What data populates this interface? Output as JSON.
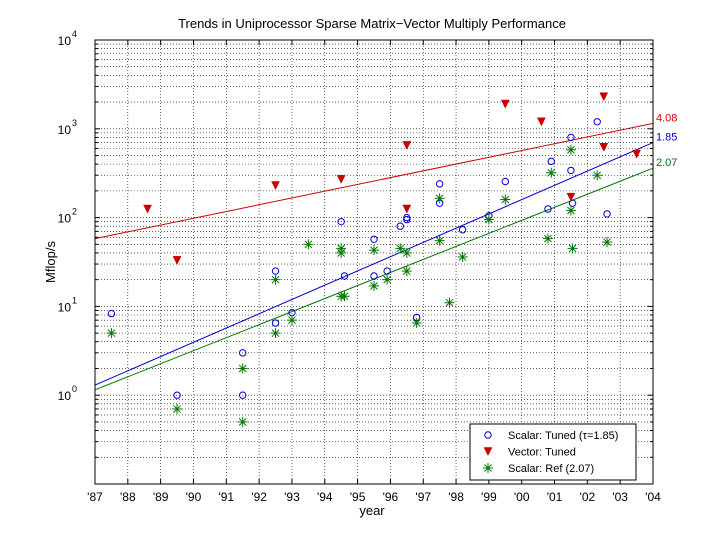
{
  "chart_data": {
    "type": "scatter",
    "title": "Trends in Uniprocessor Sparse Matrix−Vector Multiply Performance",
    "xlabel": "year",
    "ylabel": "Mflop/s",
    "y_scale": "log",
    "xlim": [
      1987,
      2004
    ],
    "ylim": [
      0.1,
      10000
    ],
    "grid": true,
    "legend_position": "bottom-right",
    "x_tick_labels": [
      "'87",
      "'88",
      "'89",
      "'90",
      "'91",
      "'92",
      "'93",
      "'94",
      "'95",
      "'96",
      "'97",
      "'98",
      "'99",
      "'00",
      "'01",
      "'02",
      "'03",
      "'04"
    ],
    "y_tick_labels": [
      {
        "value": 1,
        "base": "10",
        "exp": "0"
      },
      {
        "value": 10,
        "base": "10",
        "exp": "1"
      },
      {
        "value": 100,
        "base": "10",
        "exp": "2"
      },
      {
        "value": 1000,
        "base": "10",
        "exp": "3"
      },
      {
        "value": 10000,
        "base": "10",
        "exp": "4"
      }
    ],
    "series": [
      {
        "name": "Scalar: Tuned (τ=1.85)",
        "marker": "circle",
        "color": "#0000cc",
        "points": [
          [
            1987.5,
            8.3
          ],
          [
            1989.5,
            1.0
          ],
          [
            1991.5,
            3.0
          ],
          [
            1991.5,
            1.0
          ],
          [
            1992.5,
            25
          ],
          [
            1992.5,
            6.5
          ],
          [
            1993.0,
            8.5
          ],
          [
            1994.5,
            90
          ],
          [
            1994.6,
            22
          ],
          [
            1995.5,
            57
          ],
          [
            1995.5,
            22
          ],
          [
            1995.9,
            25
          ],
          [
            1996.3,
            80
          ],
          [
            1996.5,
            95
          ],
          [
            1996.5,
            100
          ],
          [
            1996.8,
            7.5
          ],
          [
            1997.5,
            240
          ],
          [
            1997.5,
            145
          ],
          [
            1998.2,
            73
          ],
          [
            1999.0,
            105
          ],
          [
            1999.5,
            255
          ],
          [
            2000.8,
            125
          ],
          [
            2000.9,
            430
          ],
          [
            2001.5,
            340
          ],
          [
            2001.5,
            800
          ],
          [
            2001.55,
            145
          ],
          [
            2002.3,
            1200
          ],
          [
            2002.6,
            110
          ]
        ]
      },
      {
        "name": "Vector: Tuned",
        "marker": "triangle-down",
        "color": "#cc0000",
        "points": [
          [
            1988.6,
            125
          ],
          [
            1989.5,
            33
          ],
          [
            1992.5,
            230
          ],
          [
            1994.5,
            270
          ],
          [
            1996.5,
            650
          ],
          [
            1996.5,
            125
          ],
          [
            1999.5,
            1900
          ],
          [
            2000.6,
            1200
          ],
          [
            2001.5,
            170
          ],
          [
            2002.5,
            2300
          ],
          [
            2002.5,
            620
          ],
          [
            2003.5,
            520
          ]
        ]
      },
      {
        "name": "Scalar: Ref (2.07)",
        "marker": "asterisk",
        "color": "#007700",
        "points": [
          [
            1987.5,
            5
          ],
          [
            1989.5,
            0.7
          ],
          [
            1991.5,
            2
          ],
          [
            1991.5,
            0.5
          ],
          [
            1992.5,
            20
          ],
          [
            1992.5,
            5
          ],
          [
            1993.0,
            7
          ],
          [
            1993.5,
            50
          ],
          [
            1994.5,
            45
          ],
          [
            1994.5,
            40
          ],
          [
            1994.5,
            13
          ],
          [
            1994.6,
            13
          ],
          [
            1995.5,
            43
          ],
          [
            1995.5,
            17
          ],
          [
            1995.9,
            20
          ],
          [
            1996.3,
            45
          ],
          [
            1996.5,
            40
          ],
          [
            1996.5,
            25
          ],
          [
            1996.8,
            6.5
          ],
          [
            1997.5,
            165
          ],
          [
            1997.5,
            55
          ],
          [
            1997.8,
            11
          ],
          [
            1998.2,
            36
          ],
          [
            1999.0,
            95
          ],
          [
            1999.5,
            160
          ],
          [
            2000.8,
            58
          ],
          [
            2000.9,
            320
          ],
          [
            2001.5,
            580
          ],
          [
            2001.5,
            120
          ],
          [
            2001.55,
            45
          ],
          [
            2002.3,
            300
          ],
          [
            2002.6,
            53
          ]
        ]
      }
    ],
    "trend_lines": [
      {
        "series": "Vector: Tuned",
        "label": "4.08",
        "color": "#cc0000",
        "from": [
          1987,
          58
        ],
        "to": [
          2004,
          1150
        ]
      },
      {
        "series": "Scalar: Tuned (τ=1.85)",
        "label": "1.85",
        "color": "#0000cc",
        "from": [
          1987,
          1.3
        ],
        "to": [
          2004,
          700
        ]
      },
      {
        "series": "Scalar: Ref (2.07)",
        "label": "2.07",
        "color": "#007700",
        "from": [
          1987,
          1.15
        ],
        "to": [
          2004,
          360
        ]
      }
    ]
  }
}
